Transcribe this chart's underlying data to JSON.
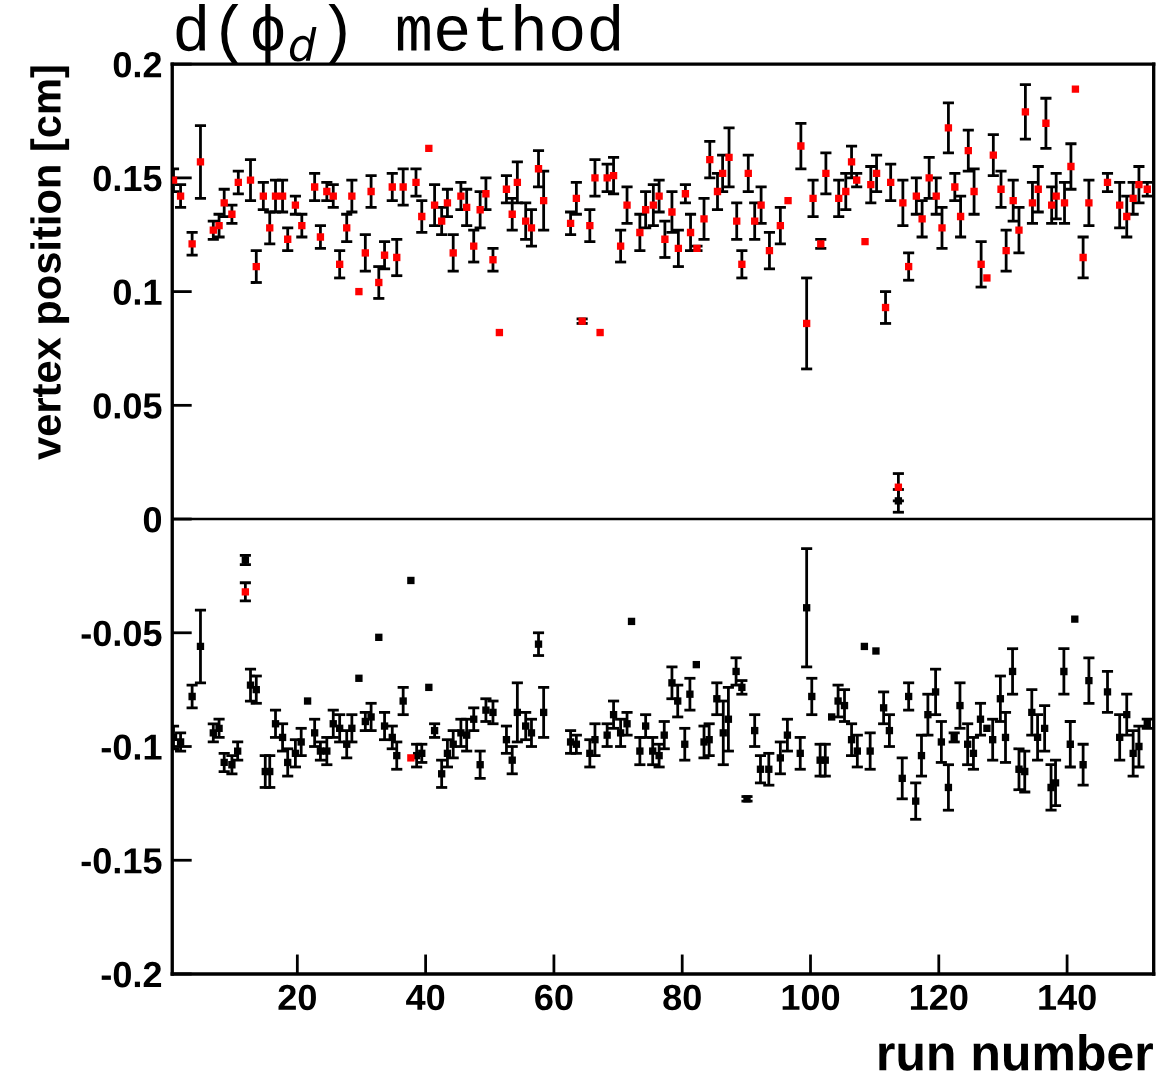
{
  "chart_data": {
    "type": "scatter",
    "title": "d(ϕ$_{d}$) method",
    "xlabel": "run number",
    "ylabel": "vertex position [cm]",
    "xlim": [
      0.5,
      153.5
    ],
    "xticks": [
      20,
      40,
      60,
      80,
      100,
      120,
      140
    ],
    "ylim": [
      -0.2,
      0.2
    ],
    "yticks": [
      -0.2,
      -0.15,
      -0.1,
      -0.05,
      0,
      0.05,
      0.1,
      0.15,
      0.2
    ],
    "grid": false,
    "marker": "square",
    "ref_lines": [
      {
        "axis": "y",
        "value": 0,
        "color": "#000000"
      }
    ],
    "series": [
      {
        "color": "#000000",
        "x": [
          0.7,
          1.8,
          3.6,
          4.9,
          6.9,
          7.8,
          8.6,
          9.8,
          10.7,
          11.9,
          12.7,
          13.6,
          15.0,
          15.7,
          16.6,
          17.7,
          18.5,
          19.7,
          20.6,
          21.6,
          22.7,
          23.6,
          24.6,
          25.6,
          26.6,
          27.7,
          28.5,
          29.6,
          30.6,
          31.5,
          32.7,
          33.6,
          34.8,
          35.5,
          36.5,
          37.7,
          38.6,
          39.4,
          40.5,
          41.4,
          42.5,
          43.4,
          44.3,
          45.5,
          46.4,
          47.5,
          48.5,
          49.4,
          50.5,
          52.6,
          53.5,
          54.3,
          55.6,
          56.5,
          57.6,
          58.4,
          62.6,
          63.5,
          65.6,
          66.4,
          68.3,
          69.3,
          70.4,
          71.4,
          72.1,
          73.4,
          74.3,
          75.4,
          76.4,
          77.2,
          78.4,
          79.3,
          80.4,
          81.2,
          82.2,
          83.4,
          84.2,
          85.4,
          86.4,
          87.2,
          88.4,
          89.3,
          90.1,
          91.3,
          92.2,
          93.5,
          95.3,
          96.4,
          98.4,
          99.4,
          100.2,
          101.5,
          102.3,
          103.3,
          104.3,
          105.3,
          106.4,
          107.3,
          108.4,
          109.3,
          110.2,
          111.4,
          112.3,
          113.7,
          114.3,
          115.3,
          116.4,
          117.3,
          118.3,
          119.5,
          120.4,
          121.5,
          122.4,
          123.3,
          124.5,
          125.4,
          126.5,
          127.5,
          128.4,
          129.6,
          130.4,
          131.5,
          132.5,
          133.4,
          134.5,
          135.4,
          136.5,
          137.5,
          138.2,
          139.5,
          140.5,
          141.2,
          142.5,
          143.4,
          146.3,
          148.2,
          149.3,
          150.3,
          151.2,
          152.5
        ],
        "values": [
          -0.096,
          -0.098,
          -0.078,
          -0.056,
          -0.094,
          -0.092,
          -0.107,
          -0.108,
          -0.102,
          -0.018,
          -0.073,
          -0.075,
          -0.111,
          -0.111,
          -0.09,
          -0.096,
          -0.107,
          -0.103,
          -0.098,
          -0.08,
          -0.094,
          -0.102,
          -0.102,
          -0.09,
          -0.092,
          -0.099,
          -0.092,
          -0.07,
          -0.089,
          -0.087,
          -0.052,
          -0.091,
          -0.096,
          -0.104,
          -0.08,
          -0.027,
          -0.104,
          -0.103,
          -0.074,
          -0.093,
          -0.112,
          -0.103,
          -0.099,
          -0.094,
          -0.095,
          -0.088,
          -0.108,
          -0.084,
          -0.085,
          -0.097,
          -0.106,
          -0.085,
          -0.091,
          -0.094,
          -0.055,
          -0.085,
          -0.098,
          -0.099,
          -0.103,
          -0.097,
          -0.095,
          -0.086,
          -0.094,
          -0.09,
          -0.045,
          -0.102,
          -0.091,
          -0.102,
          -0.104,
          -0.095,
          -0.072,
          -0.08,
          -0.099,
          -0.077,
          -0.064,
          -0.098,
          -0.097,
          -0.079,
          -0.094,
          -0.088,
          -0.067,
          -0.074,
          -0.123,
          -0.093,
          -0.11,
          -0.11,
          -0.105,
          -0.095,
          -0.103,
          -0.039,
          -0.078,
          -0.106,
          -0.106,
          -0.087,
          -0.08,
          -0.082,
          -0.097,
          -0.102,
          -0.056,
          -0.102,
          -0.058,
          -0.083,
          -0.093,
          0.008,
          -0.114,
          -0.078,
          -0.124,
          -0.104,
          -0.086,
          -0.076,
          -0.098,
          -0.118,
          -0.096,
          -0.082,
          -0.099,
          -0.103,
          -0.088,
          -0.092,
          -0.097,
          -0.079,
          -0.096,
          -0.067,
          -0.11,
          -0.111,
          -0.085,
          -0.096,
          -0.092,
          -0.118,
          -0.116,
          -0.067,
          -0.099,
          -0.044,
          -0.108,
          -0.071,
          -0.076,
          -0.096,
          -0.086,
          -0.103,
          -0.1,
          -0.09
        ],
        "errors": [
          0.005,
          0.004,
          0.005,
          0.016,
          0.004,
          0.004,
          0.004,
          0.004,
          0.004,
          0.002,
          0.007,
          0.006,
          0.007,
          0.007,
          0.006,
          0.006,
          0.006,
          0.006,
          0.006,
          null,
          0.006,
          0.004,
          0.006,
          0.006,
          0.006,
          0.006,
          0.006,
          null,
          0.004,
          0.006,
          null,
          0.006,
          0.005,
          0.006,
          0.006,
          null,
          0.005,
          0.004,
          null,
          0.003,
          0.006,
          0.006,
          0.006,
          0.006,
          0.007,
          0.005,
          0.006,
          0.005,
          0.005,
          0.006,
          0.006,
          0.013,
          0.006,
          0.006,
          0.005,
          0.011,
          0.005,
          0.004,
          0.006,
          0.007,
          0.005,
          0.006,
          0.006,
          0.005,
          null,
          0.006,
          0.005,
          0.006,
          0.005,
          0.006,
          0.007,
          0.007,
          0.007,
          0.007,
          null,
          0.007,
          0.007,
          0.007,
          0.014,
          0.014,
          0.006,
          0.003,
          0.001,
          0.007,
          0.006,
          0.007,
          0.007,
          0.007,
          0.007,
          0.026,
          0.008,
          0.007,
          0.007,
          null,
          0.007,
          0.007,
          0.007,
          0.007,
          null,
          0.008,
          null,
          0.007,
          0.007,
          0.005,
          0.009,
          0.006,
          0.008,
          0.009,
          0.009,
          0.01,
          0.009,
          0.01,
          0.002,
          0.01,
          0.009,
          0.007,
          0.007,
          null,
          0.009,
          0.01,
          0.011,
          0.01,
          0.009,
          0.009,
          0.01,
          0.01,
          0.01,
          0.01,
          0.01,
          0.01,
          0.01,
          null,
          0.009,
          0.01,
          0.009,
          0.01,
          0.009,
          0.01,
          0.009,
          0.002
        ]
      },
      {
        "color": "#ff0000",
        "x": [
          0.7,
          1.8,
          3.6,
          4.9,
          6.9,
          7.8,
          8.6,
          9.8,
          10.8,
          11.9,
          12.7,
          13.6,
          14.7,
          15.7,
          16.6,
          17.7,
          18.5,
          19.7,
          20.7,
          22.7,
          23.6,
          24.6,
          25.6,
          26.6,
          27.7,
          28.5,
          29.6,
          30.6,
          31.5,
          32.7,
          33.6,
          34.8,
          35.5,
          36.5,
          37.7,
          38.5,
          39.4,
          40.5,
          41.4,
          42.5,
          43.4,
          44.3,
          45.5,
          46.4,
          47.5,
          48.5,
          49.4,
          50.5,
          51.5,
          52.6,
          53.5,
          54.3,
          55.6,
          56.5,
          57.6,
          58.4,
          62.6,
          63.5,
          64.4,
          65.6,
          66.4,
          67.2,
          68.3,
          69.3,
          70.4,
          71.4,
          73.4,
          74.3,
          75.5,
          76.4,
          77.3,
          78.4,
          79.4,
          80.5,
          81.3,
          82.3,
          83.4,
          84.3,
          85.5,
          86.3,
          87.3,
          88.5,
          89.3,
          90.3,
          91.3,
          92.3,
          93.6,
          95.3,
          96.5,
          98.5,
          99.4,
          100.4,
          101.6,
          102.4,
          104.4,
          105.5,
          106.4,
          107.2,
          108.5,
          109.4,
          110.3,
          111.7,
          112.5,
          113.7,
          114.4,
          115.3,
          116.5,
          117.4,
          118.5,
          119.6,
          120.5,
          121.5,
          122.5,
          123.4,
          124.6,
          125.5,
          126.6,
          127.5,
          128.5,
          129.7,
          130.5,
          131.6,
          132.5,
          133.5,
          134.6,
          135.5,
          136.7,
          137.6,
          138.3,
          139.6,
          140.6,
          141.3,
          142.5,
          143.4,
          146.3,
          148.2,
          149.3,
          150.3,
          151.2,
          152.5
        ],
        "values": [
          0.149,
          0.142,
          0.121,
          0.157,
          0.127,
          0.129,
          0.139,
          0.134,
          0.148,
          -0.032,
          0.149,
          0.111,
          0.142,
          0.128,
          0.142,
          0.142,
          0.123,
          0.138,
          0.129,
          0.146,
          0.124,
          0.144,
          0.142,
          0.112,
          0.128,
          0.142,
          0.1,
          0.117,
          0.144,
          0.104,
          0.116,
          0.146,
          0.115,
          0.146,
          -0.105,
          0.148,
          0.133,
          0.163,
          0.138,
          0.131,
          0.139,
          0.117,
          0.142,
          0.137,
          0.12,
          0.136,
          0.143,
          0.114,
          0.082,
          0.145,
          0.134,
          0.148,
          0.131,
          0.128,
          0.154,
          0.14,
          0.13,
          0.141,
          0.087,
          0.129,
          0.15,
          0.082,
          0.15,
          0.151,
          0.12,
          0.138,
          0.126,
          0.136,
          0.138,
          0.142,
          0.123,
          0.135,
          0.119,
          0.143,
          0.126,
          0.119,
          0.132,
          0.158,
          0.144,
          0.152,
          0.159,
          0.131,
          0.112,
          0.152,
          0.131,
          0.138,
          0.118,
          0.129,
          0.14,
          0.164,
          0.086,
          0.141,
          0.121,
          0.152,
          0.141,
          0.144,
          0.157,
          0.149,
          0.122,
          0.147,
          0.152,
          0.093,
          0.148,
          0.014,
          0.139,
          0.111,
          0.142,
          0.132,
          0.15,
          0.142,
          0.128,
          0.172,
          0.146,
          0.133,
          0.162,
          0.144,
          0.112,
          0.106,
          0.16,
          0.145,
          0.118,
          0.14,
          0.127,
          0.179,
          0.139,
          0.145,
          0.174,
          0.138,
          0.142,
          0.139,
          0.155,
          0.189,
          0.115,
          0.139,
          0.148,
          0.138,
          0.133,
          0.141,
          0.147,
          0.145
        ],
        "errors": [
          0.005,
          0.005,
          0.005,
          0.016,
          0.004,
          0.005,
          0.006,
          0.004,
          0.005,
          0.004,
          0.009,
          0.007,
          0.006,
          0.007,
          0.007,
          0.007,
          0.005,
          0.004,
          0.005,
          0.006,
          0.005,
          0.004,
          0.005,
          0.006,
          0.006,
          0.007,
          null,
          0.008,
          0.007,
          0.007,
          0.006,
          0.006,
          0.008,
          0.008,
          null,
          0.006,
          0.007,
          null,
          0.009,
          0.006,
          0.006,
          0.008,
          0.006,
          0.008,
          0.007,
          0.008,
          0.007,
          0.005,
          null,
          0.006,
          0.007,
          0.009,
          0.008,
          0.008,
          0.008,
          0.013,
          0.005,
          0.007,
          0.001,
          0.007,
          0.008,
          null,
          0.006,
          0.008,
          0.007,
          0.008,
          0.008,
          0.008,
          0.009,
          0.007,
          0.008,
          0.009,
          0.008,
          0.004,
          0.008,
          0.001,
          0.009,
          0.008,
          0.008,
          0.008,
          0.013,
          0.008,
          0.006,
          0.008,
          0.008,
          0.008,
          0.008,
          0.008,
          null,
          0.01,
          0.02,
          0.008,
          0.002,
          0.009,
          0.008,
          0.008,
          0.007,
          0.003,
          null,
          0.008,
          0.008,
          0.007,
          0.008,
          0.006,
          0.01,
          0.006,
          0.008,
          0.008,
          0.009,
          0.008,
          0.009,
          0.011,
          0.006,
          0.009,
          0.009,
          0.01,
          0.01,
          null,
          0.009,
          0.008,
          0.009,
          0.009,
          0.01,
          0.012,
          0.009,
          0.01,
          0.011,
          0.008,
          0.01,
          0.009,
          0.01,
          null,
          0.009,
          0.01,
          0.004,
          0.01,
          0.009,
          0.007,
          0.008,
          0.003
        ]
      }
    ]
  }
}
